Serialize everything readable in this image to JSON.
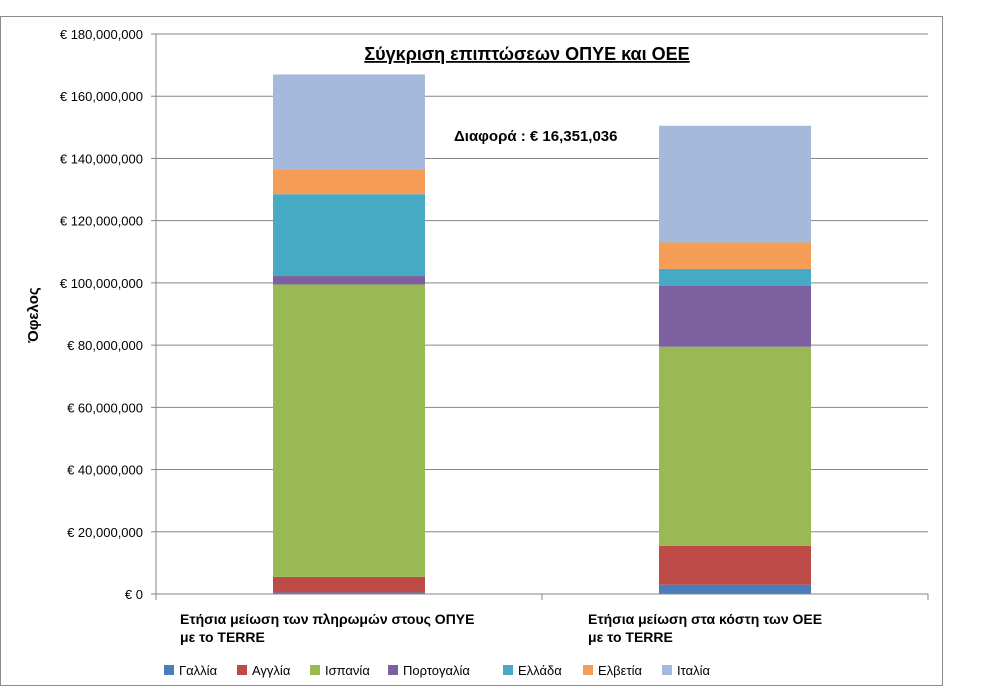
{
  "chart_data": {
    "type": "bar",
    "stacked": true,
    "title": "Σύγκριση επιπτώσεων ΟΠΥΕ και ΟΕΕ",
    "annotation": "Διαφορά : € 16,351,036",
    "ylabel": "Όφελος",
    "xlabel": "",
    "ylim": [
      0,
      180000000
    ],
    "yticks": [
      0,
      20000000,
      40000000,
      60000000,
      80000000,
      100000000,
      120000000,
      140000000,
      160000000,
      180000000
    ],
    "ytick_labels": [
      "€ 0",
      "€ 20,000,000",
      "€ 40,000,000",
      "€ 60,000,000",
      "€ 80,000,000",
      "€ 100,000,000",
      "€ 120,000,000",
      "€ 140,000,000",
      "€ 160,000,000",
      "€ 180,000,000"
    ],
    "categories": [
      [
        "Ετήσια μείωση των πληρωμών στους  ΟΠΥΕ",
        "με το TERRE"
      ],
      [
        "Ετήσια μείωση στα κόστη των ΟΕΕ",
        "με το TERRE"
      ]
    ],
    "grid": true,
    "legend_position": "bottom",
    "series": [
      {
        "name": "Γαλλία",
        "color": "#4a7ebb",
        "values": [
          500000,
          3000000
        ]
      },
      {
        "name": "Αγγλία",
        "color": "#be4b48",
        "values": [
          5000000,
          12500000
        ]
      },
      {
        "name": "Ισπανία",
        "color": "#98b954",
        "values": [
          94000000,
          64000000
        ]
      },
      {
        "name": "Πορτογαλία",
        "color": "#7d60a0",
        "values": [
          2700000,
          19500000
        ]
      },
      {
        "name": "Ελλάδα",
        "color": "#46aac5",
        "values": [
          26300000,
          5500000
        ]
      },
      {
        "name": "Ελβετία",
        "color": "#f59d56",
        "values": [
          8000000,
          8500000
        ]
      },
      {
        "name": "Ιταλία",
        "color": "#a5b9dc",
        "values": [
          30500000,
          37500000
        ]
      }
    ]
  }
}
